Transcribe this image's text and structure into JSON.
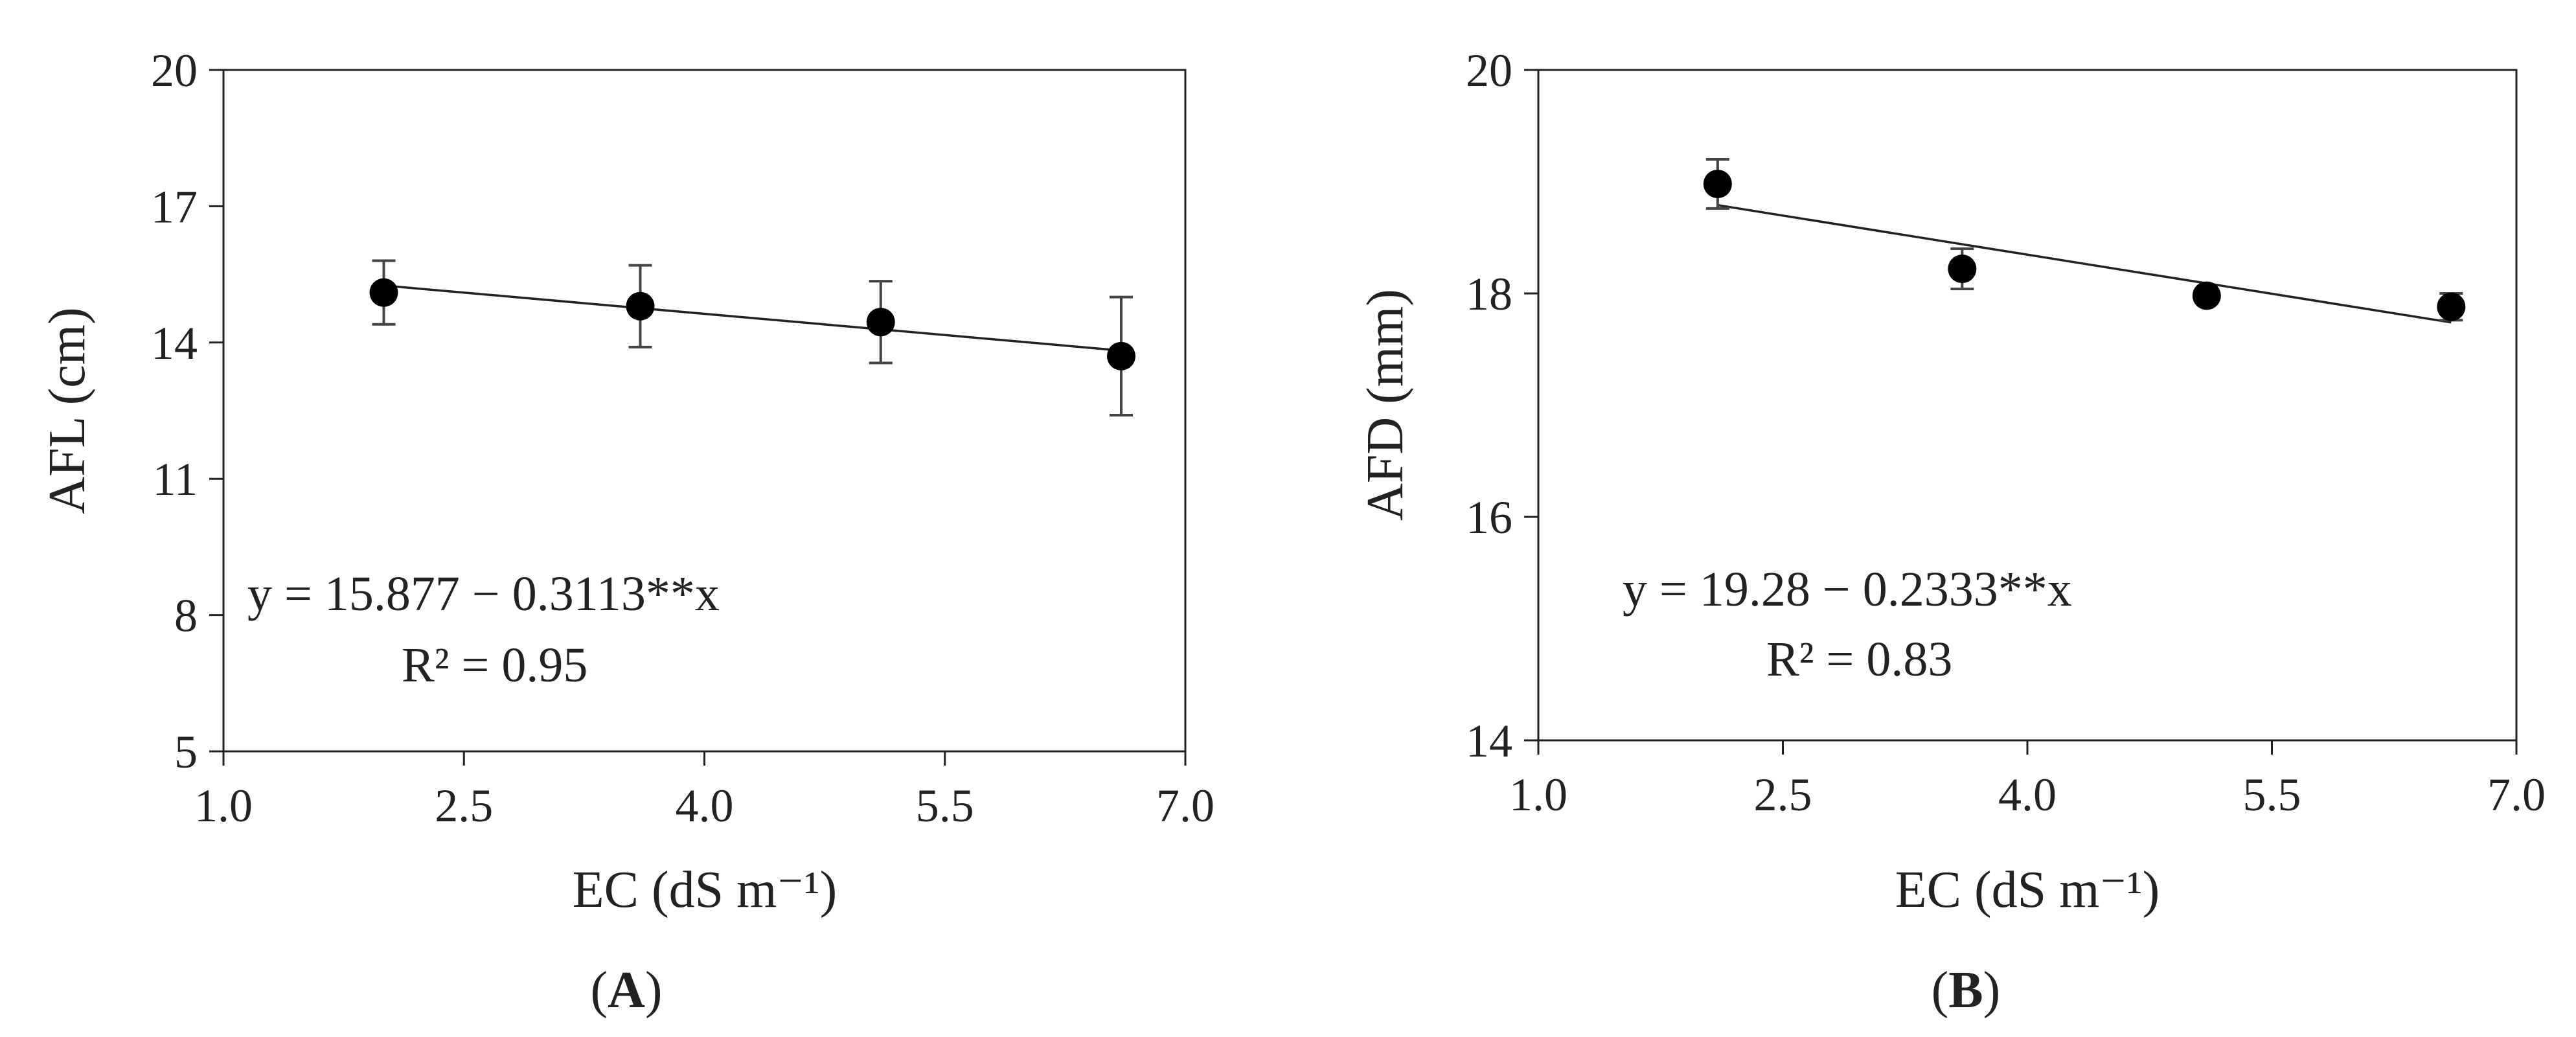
{
  "chart_data": [
    {
      "type": "scatter",
      "panel_label": "A",
      "ylabel": "AFL (cm)",
      "xlabel": "EC (dS m⁻¹)",
      "xlim": [
        1.0,
        7.0
      ],
      "ylim": [
        5,
        20
      ],
      "xticks": [
        "1.0",
        "2.5",
        "4.0",
        "5.5",
        "7.0"
      ],
      "yticks": [
        "5",
        "8",
        "11",
        "14",
        "17",
        "20"
      ],
      "points": [
        {
          "x": 2.0,
          "y": 15.1,
          "err": 0.7
        },
        {
          "x": 3.6,
          "y": 14.8,
          "err": 0.9
        },
        {
          "x": 5.1,
          "y": 14.45,
          "err": 0.9
        },
        {
          "x": 6.6,
          "y": 13.7,
          "err": 1.3
        }
      ],
      "trend": {
        "intercept": 15.877,
        "slope": -0.3113,
        "x_range": [
          2.0,
          6.6
        ]
      },
      "equation": "y = 15.877 − 0.3113**x",
      "r2": "R² = 0.95",
      "grid": false
    },
    {
      "type": "scatter",
      "panel_label": "B",
      "ylabel": "AFD (mm)",
      "xlabel": "EC (dS m⁻¹)",
      "xlim": [
        1.0,
        7.0
      ],
      "ylim": [
        14,
        20
      ],
      "xticks": [
        "1.0",
        "2.5",
        "4.0",
        "5.5",
        "7.0"
      ],
      "yticks": [
        "14",
        "16",
        "18",
        "20"
      ],
      "points": [
        {
          "x": 2.1,
          "y": 18.98,
          "err": 0.22
        },
        {
          "x": 3.6,
          "y": 18.22,
          "err": 0.18
        },
        {
          "x": 5.1,
          "y": 17.98,
          "err": 0.06
        },
        {
          "x": 6.6,
          "y": 17.88,
          "err": 0.12
        }
      ],
      "trend": {
        "intercept": 19.28,
        "slope": -0.2333,
        "x_range": [
          2.1,
          6.6
        ]
      },
      "equation": "y = 19.28  − 0.2333**x",
      "r2": "R² = 0.83",
      "grid": false
    }
  ]
}
